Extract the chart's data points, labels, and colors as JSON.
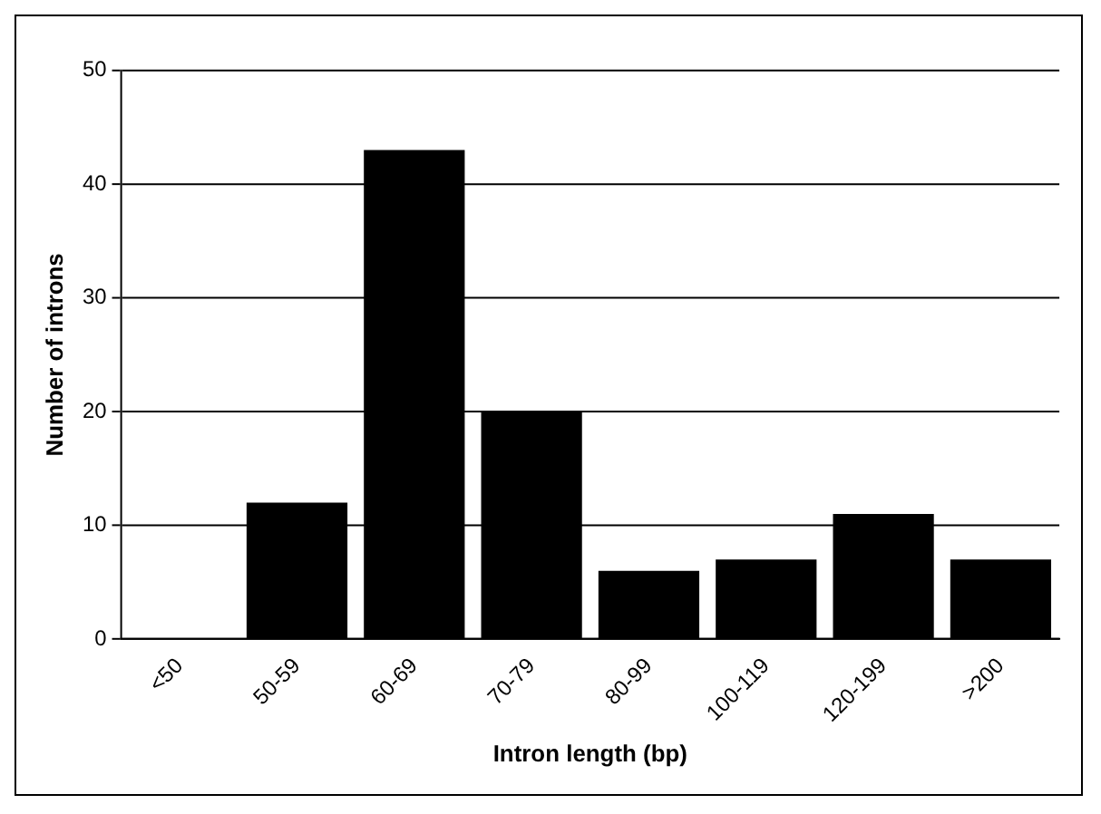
{
  "chart_data": {
    "type": "bar",
    "xlabel": "Intron length (bp)",
    "ylabel": "Number of introns",
    "categories": [
      "<50",
      "50-59",
      "60-69",
      "70-79",
      "80-99",
      "100-119",
      "120-199",
      ">200"
    ],
    "values": [
      0,
      12,
      43,
      20,
      6,
      7,
      11,
      7
    ],
    "color": "#000000",
    "ylim": [
      0,
      50
    ],
    "yticks": [
      0,
      10,
      20,
      30,
      40,
      50
    ],
    "grid": "y",
    "legend": false
  }
}
